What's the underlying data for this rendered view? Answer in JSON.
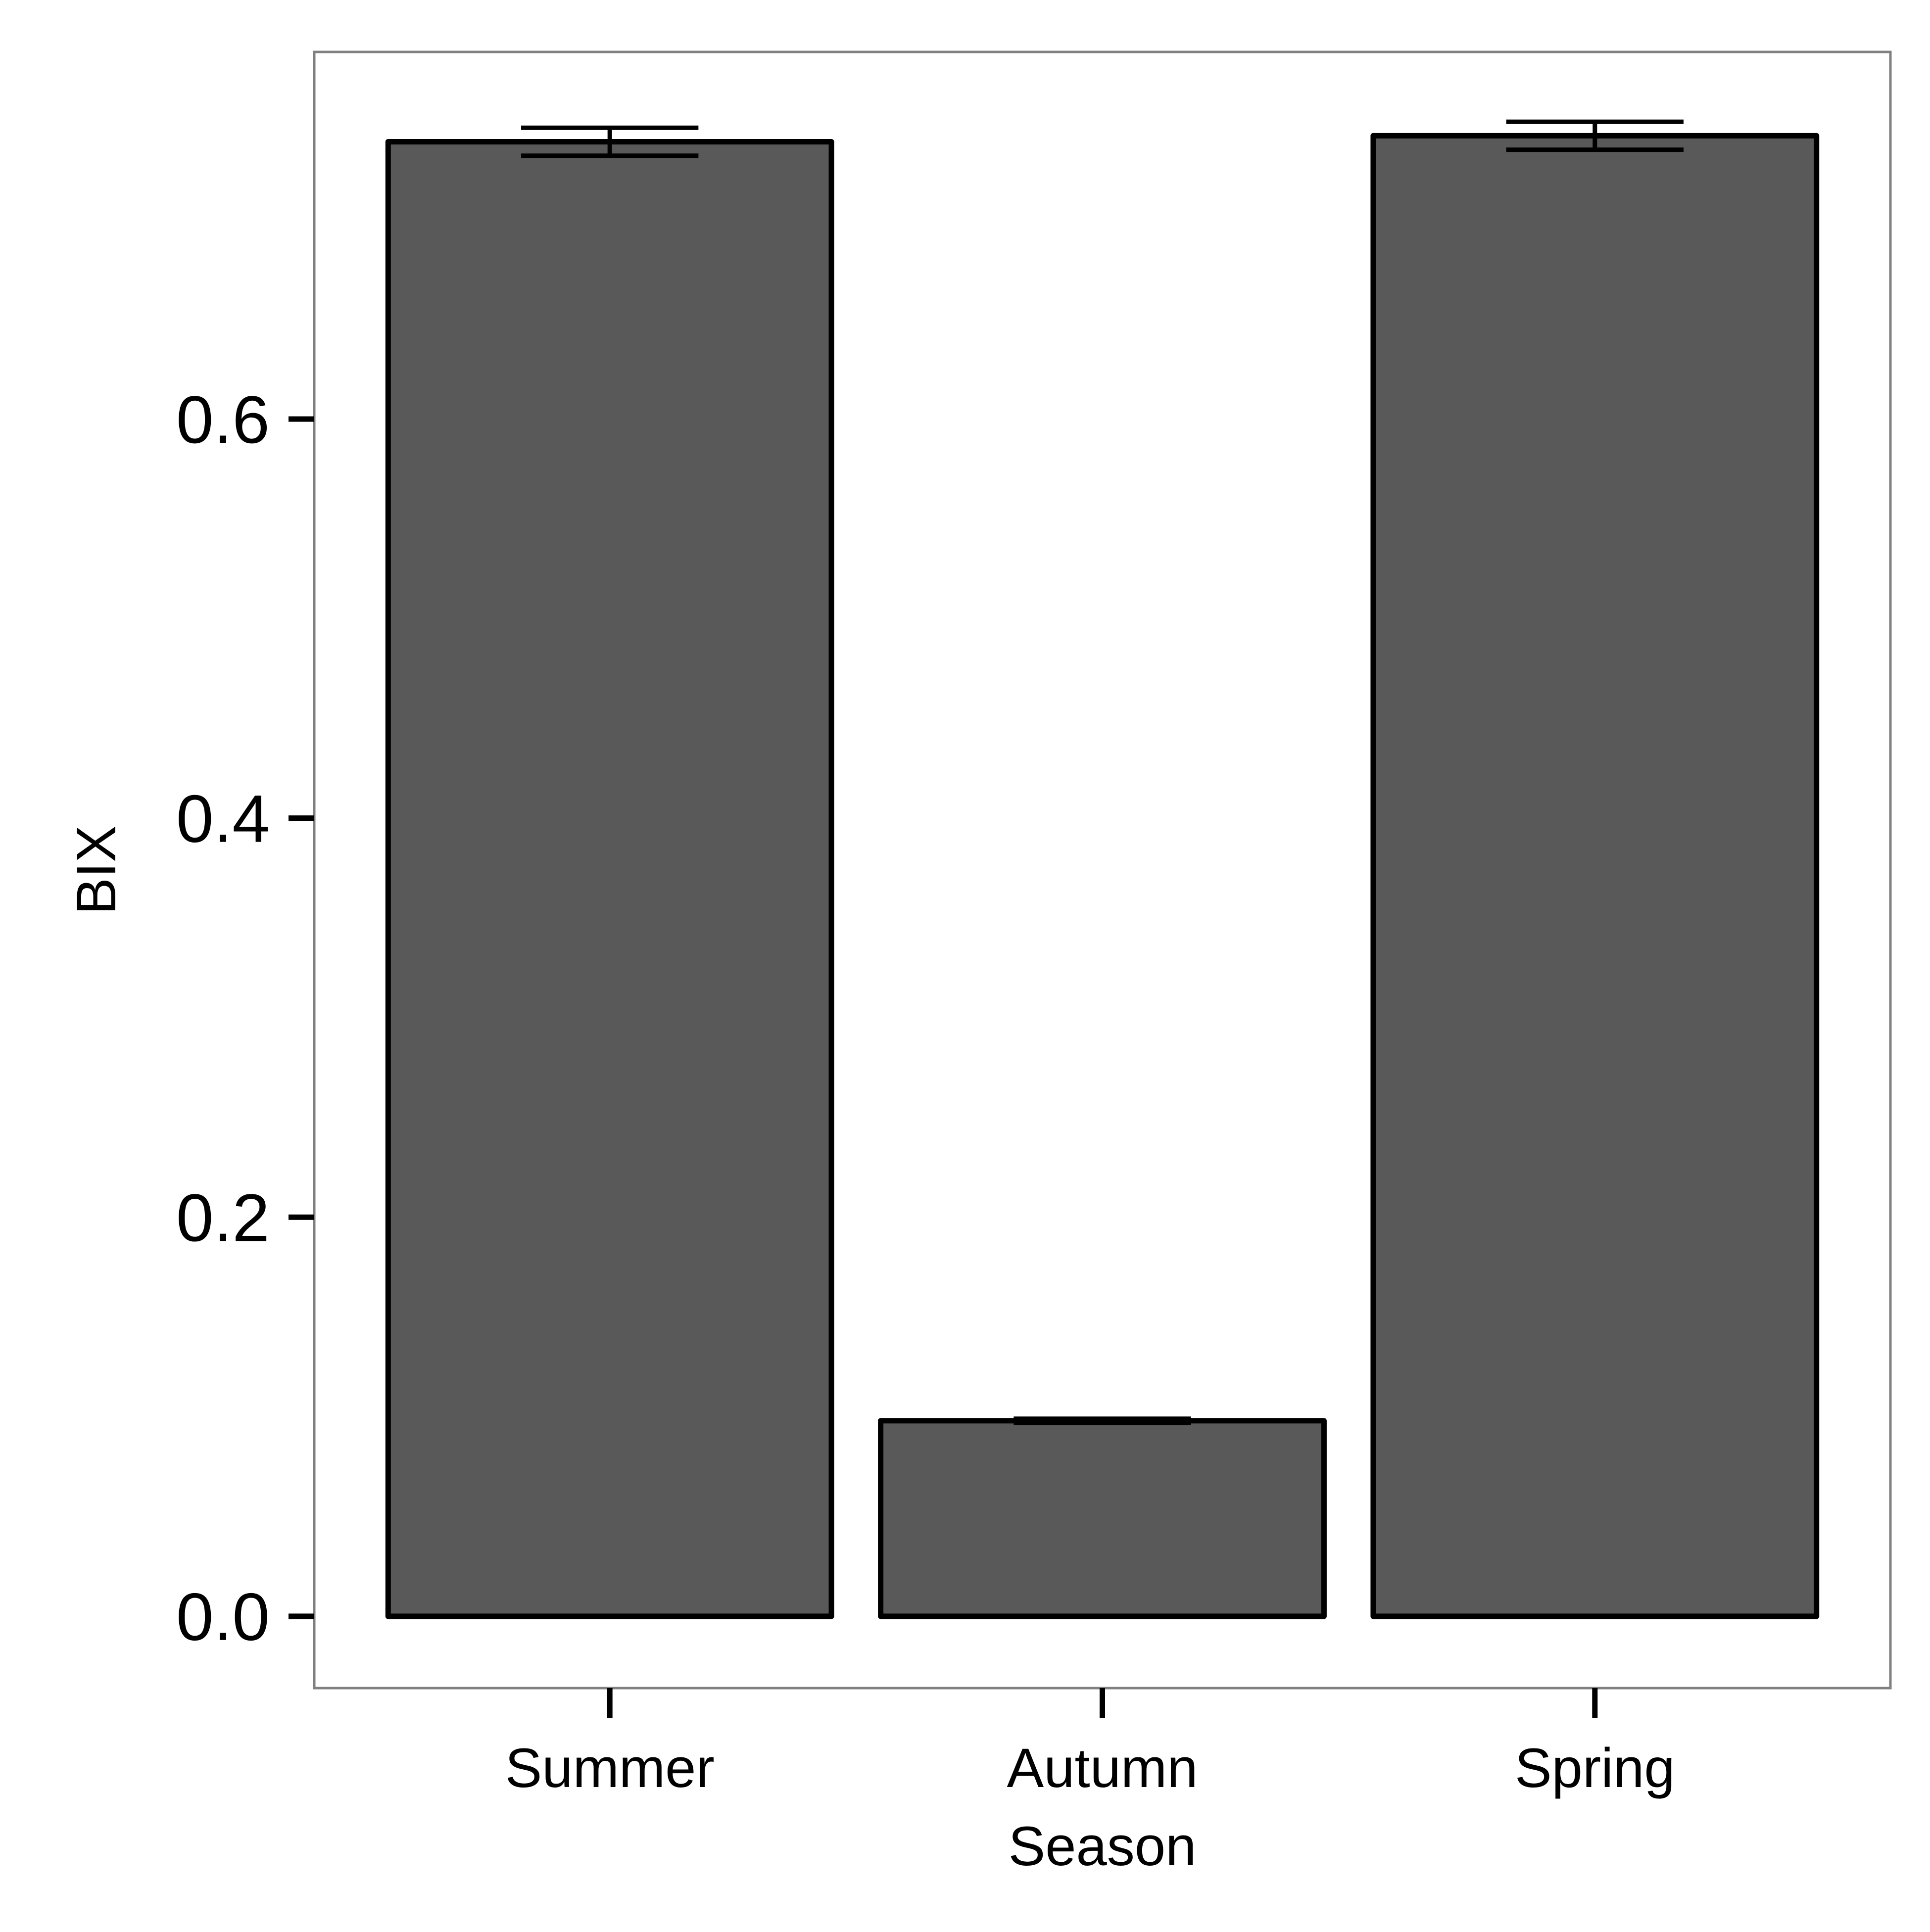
{
  "chart_data": {
    "type": "bar",
    "categories": [
      "Summer",
      "Autumn",
      "Spring"
    ],
    "values": [
      0.739,
      0.098,
      0.742
    ],
    "errors": [
      0.007,
      0.001,
      0.007
    ],
    "xlabel": "Season",
    "ylabel": "BIX",
    "ylim": [
      -0.036,
      0.784
    ],
    "yticks": [
      0.0,
      0.2,
      0.4,
      0.6
    ],
    "ytick_labels": [
      "0.0",
      "0.2",
      "0.4",
      "0.6"
    ],
    "grid": false,
    "legend": "none",
    "colors": {
      "bar_fill": "#595959",
      "bar_stroke": "#000000",
      "panel_border": "#808080",
      "background": "#ffffff"
    }
  }
}
